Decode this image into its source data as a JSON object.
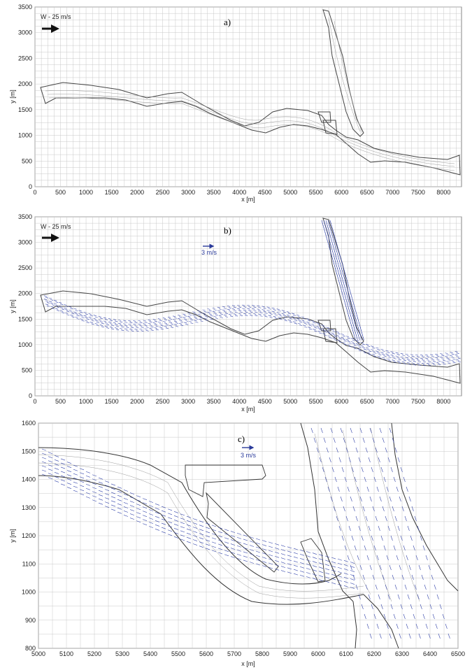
{
  "chart_data": [
    {
      "type": "line",
      "panel_label": "a)",
      "xlabel": "x [m]",
      "ylabel": "y [m]",
      "xlim": [
        0,
        8350
      ],
      "ylim": [
        0,
        3500
      ],
      "xticks": [
        "0",
        "500",
        "1000",
        "1500",
        "2000",
        "2500",
        "3000",
        "3500",
        "4000",
        "4500",
        "5000",
        "5500",
        "6000",
        "6500",
        "7000",
        "7500",
        "8000"
      ],
      "yticks": [
        "0",
        "500",
        "1000",
        "1500",
        "2000",
        "2500",
        "3000",
        "3500"
      ],
      "wind_label": "W - 25 m/s",
      "description_series": [
        {
          "name": "river_centerline",
          "x": [
            100,
            600,
            1200,
            1800,
            2500,
            3000,
            3600,
            4100,
            4600,
            5100,
            5600,
            6000,
            6500,
            7000,
            7500,
            8300
          ],
          "y": [
            1950,
            1850,
            1800,
            1700,
            1700,
            1550,
            1350,
            1250,
            1450,
            1350,
            1200,
            1050,
            850,
            800,
            700,
            550
          ]
        },
        {
          "name": "tributary_centerline",
          "x": [
            5700,
            5850,
            6000,
            6050,
            6100,
            6200
          ],
          "y": [
            3300,
            2500,
            1800,
            1300,
            1050,
            850
          ]
        }
      ]
    },
    {
      "type": "line",
      "panel_label": "b)",
      "xlabel": "x [m]",
      "ylabel": "y [m]",
      "xlim": [
        0,
        8350
      ],
      "ylim": [
        0,
        3500
      ],
      "xticks": [
        "0",
        "500",
        "1000",
        "1500",
        "2000",
        "2500",
        "3000",
        "3500",
        "4000",
        "4500",
        "5000",
        "5500",
        "6000",
        "6500",
        "7000",
        "7500",
        "8000"
      ],
      "yticks": [
        "0",
        "500",
        "1000",
        "1500",
        "2000",
        "2500",
        "3000",
        "3500"
      ],
      "wind_label": "W - 25 m/s",
      "velocity_scale": "3 m/s"
    },
    {
      "type": "line",
      "panel_label": "c)",
      "xlabel": "x [m]",
      "ylabel": "y [m]",
      "xlim": [
        5000,
        6500
      ],
      "ylim": [
        800,
        1600
      ],
      "xticks": [
        "5000",
        "5100",
        "5200",
        "5300",
        "5400",
        "5500",
        "5600",
        "5700",
        "5800",
        "5900",
        "6000",
        "6100",
        "6200",
        "6300",
        "6400",
        "6500"
      ],
      "yticks": [
        "800",
        "900",
        "1000",
        "1100",
        "1200",
        "1300",
        "1400",
        "1500",
        "1600"
      ],
      "velocity_scale": "3 m/s"
    }
  ]
}
